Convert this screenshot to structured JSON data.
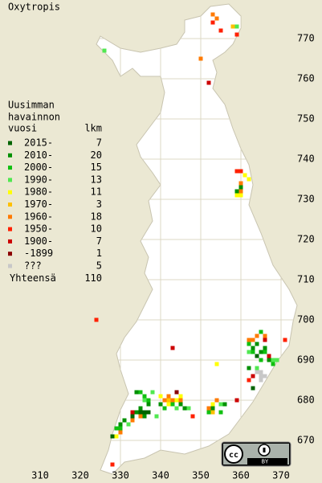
{
  "title": "Oxytropis",
  "legend": {
    "heading": [
      "Uusimman",
      "havainnon",
      "vuosi"
    ],
    "count_heading": "lkm",
    "items": [
      {
        "label": "2015-",
        "count": 7,
        "color": "#006400",
        "squares": [
          [
            363,
            683
          ],
          [
            336,
            677
          ],
          [
            337,
            677
          ],
          [
            364,
            691
          ],
          [
            333,
            676
          ],
          [
            328,
            671
          ],
          [
            335,
            677
          ]
        ]
      },
      {
        "label": "2010-",
        "count": 20,
        "color": "#009000",
        "squares": [
          [
            364,
            694
          ],
          [
            366,
            693
          ],
          [
            365,
            692
          ],
          [
            367,
            690
          ],
          [
            363,
            693
          ],
          [
            336,
            676
          ],
          [
            334,
            677
          ],
          [
            335,
            678
          ],
          [
            337,
            679
          ],
          [
            340,
            679
          ],
          [
            345,
            679
          ],
          [
            346,
            678
          ],
          [
            353,
            678
          ],
          [
            356,
            679
          ],
          [
            334,
            682
          ],
          [
            360,
            733
          ],
          [
            359,
            732
          ],
          [
            362,
            688
          ],
          [
            330,
            674
          ],
          [
            331,
            675
          ]
        ]
      },
      {
        "label": "2000-",
        "count": 15,
        "color": "#10c010",
        "squares": [
          [
            362,
            694
          ],
          [
            363,
            692
          ],
          [
            366,
            692
          ],
          [
            368,
            689
          ],
          [
            365,
            690
          ],
          [
            337,
            680
          ],
          [
            335,
            682
          ],
          [
            336,
            681
          ],
          [
            341,
            678
          ],
          [
            343,
            679
          ],
          [
            352,
            677
          ],
          [
            355,
            677
          ],
          [
            329,
            673
          ],
          [
            330,
            673
          ],
          [
            365,
            697
          ]
        ]
      },
      {
        "label": "1990-",
        "count": 13,
        "color": "#50e850",
        "squares": [
          [
            326,
            767
          ],
          [
            359,
            773
          ],
          [
            368,
            690
          ],
          [
            369,
            690
          ],
          [
            362,
            692
          ],
          [
            338,
            682
          ],
          [
            339,
            676
          ],
          [
            332,
            674
          ],
          [
            347,
            678
          ],
          [
            336,
            680
          ],
          [
            355,
            679
          ],
          [
            344,
            678
          ],
          [
            364,
            688
          ]
        ]
      },
      {
        "label": "1980-",
        "count": 11,
        "color": "#ffff00",
        "squares": [
          [
            361,
            736
          ],
          [
            362,
            735
          ],
          [
            359,
            731
          ],
          [
            360,
            731
          ],
          [
            354,
            689
          ],
          [
            344,
            680
          ],
          [
            345,
            681
          ],
          [
            329,
            671
          ],
          [
            353,
            679
          ],
          [
            340,
            681
          ],
          [
            342,
            679
          ]
        ]
      },
      {
        "label": "1970-",
        "count": 3,
        "color": "#ffc000",
        "squares": [
          [
            358,
            773
          ],
          [
            342,
            680
          ],
          [
            353,
            677
          ]
        ]
      },
      {
        "label": "1960-",
        "count": 18,
        "color": "#ff7a00",
        "squares": [
          [
            353,
            776
          ],
          [
            354,
            775
          ],
          [
            350,
            765
          ],
          [
            360,
            734
          ],
          [
            360,
            732
          ],
          [
            363,
            695
          ],
          [
            364,
            696
          ],
          [
            341,
            680
          ],
          [
            342,
            681
          ],
          [
            354,
            680
          ],
          [
            343,
            680
          ],
          [
            335,
            676
          ],
          [
            333,
            675
          ],
          [
            362,
            695
          ],
          [
            345,
            680
          ],
          [
            330,
            672
          ],
          [
            366,
            696
          ],
          [
            352,
            678
          ]
        ]
      },
      {
        "label": "1950-",
        "count": 10,
        "color": "#ff2000",
        "squares": [
          [
            353,
            774
          ],
          [
            355,
            772
          ],
          [
            359,
            737
          ],
          [
            360,
            737
          ],
          [
            324,
            700
          ],
          [
            371,
            695
          ],
          [
            362,
            685
          ],
          [
            348,
            676
          ],
          [
            328,
            664
          ],
          [
            359,
            771
          ]
        ]
      },
      {
        "label": "1900-",
        "count": 7,
        "color": "#cc0000",
        "squares": [
          [
            343,
            693
          ],
          [
            359,
            680
          ],
          [
            352,
            759
          ],
          [
            366,
            695
          ],
          [
            333,
            677
          ],
          [
            367,
            691
          ],
          [
            363,
            686
          ]
        ]
      },
      {
        "label": "-1899",
        "count": 1,
        "color": "#8b0000",
        "squares": [
          [
            344,
            682
          ]
        ]
      },
      {
        "label": "???",
        "count": 5,
        "color": "#c8c8c8",
        "squares": [
          [
            365,
            686
          ],
          [
            365,
            687
          ],
          [
            364,
            687
          ],
          [
            366,
            686
          ],
          [
            365,
            685
          ]
        ]
      }
    ],
    "total_label": "Yhteensä",
    "total": 110
  },
  "xticks": [
    310,
    320,
    330,
    340,
    350,
    360,
    370
  ],
  "yticks": [
    670,
    680,
    690,
    700,
    710,
    720,
    730,
    740,
    750,
    760,
    770
  ],
  "license": "BY"
}
